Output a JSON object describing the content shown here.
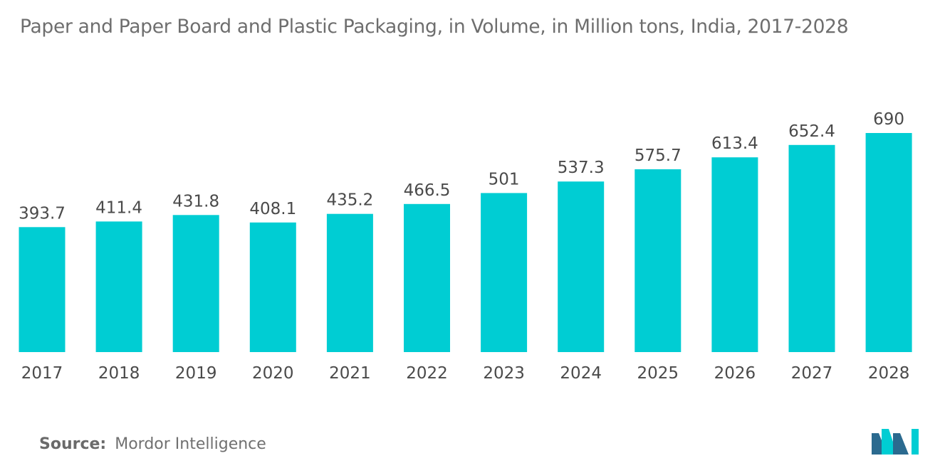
{
  "chart_data": {
    "type": "bar",
    "title": "Paper and Paper Board and Plastic Packaging, in Volume, in Million tons, India, 2017-2028",
    "categories": [
      "2017",
      "2018",
      "2019",
      "2020",
      "2021",
      "2022",
      "2023",
      "2024",
      "2025",
      "2026",
      "2027",
      "2028"
    ],
    "values": [
      393.7,
      411.4,
      431.8,
      408.1,
      435.2,
      466.5,
      501,
      537.3,
      575.7,
      613.4,
      652.4,
      690
    ],
    "value_labels": [
      "393.7",
      "411.4",
      "431.8",
      "408.1",
      "435.2",
      "466.5",
      "501",
      "537.3",
      "575.7",
      "613.4",
      "652.4",
      "690"
    ],
    "xlabel": "",
    "ylabel": "",
    "ylim": [
      0,
      690
    ],
    "grid": false,
    "legend": "none",
    "bar_color": "#00cdd3"
  },
  "source": {
    "label": "Source:",
    "value": "Mordor Intelligence"
  },
  "logo": {
    "icon": "mordor-intelligence-logo-icon",
    "colors": [
      "#2b6a8f",
      "#00cdd3"
    ]
  }
}
